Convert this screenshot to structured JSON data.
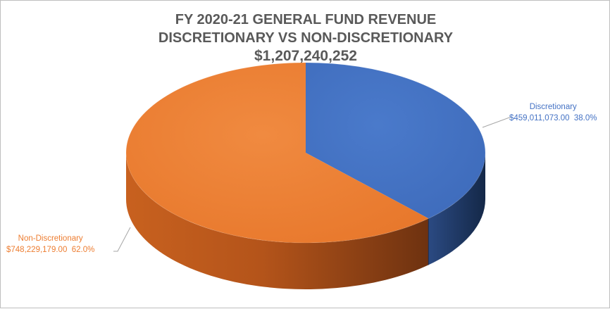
{
  "chart_data": {
    "type": "pie",
    "title_lines": [
      "FY 2020-21 GENERAL FUND REVENUE",
      "DISCRETIONARY VS NON-DISCRETIONARY",
      "$1,207,240,252"
    ],
    "slices": [
      {
        "name": "Discretionary",
        "value": 459011073.0,
        "value_label": "$459,011,073.00",
        "percent": 38.0,
        "percent_label": "38.0%",
        "color": "#4472c4",
        "side_color": "#1f3864",
        "label_text_color": "#4472c4"
      },
      {
        "name": "Non-Discretionary",
        "value": 748229179.0,
        "value_label": "$748,229,179.00",
        "percent": 62.0,
        "percent_label": "62.0%",
        "color": "#ed7d31",
        "side_color": "#b5541a",
        "label_text_color": "#ed7d31"
      }
    ],
    "style": "3d",
    "legend": "none"
  }
}
